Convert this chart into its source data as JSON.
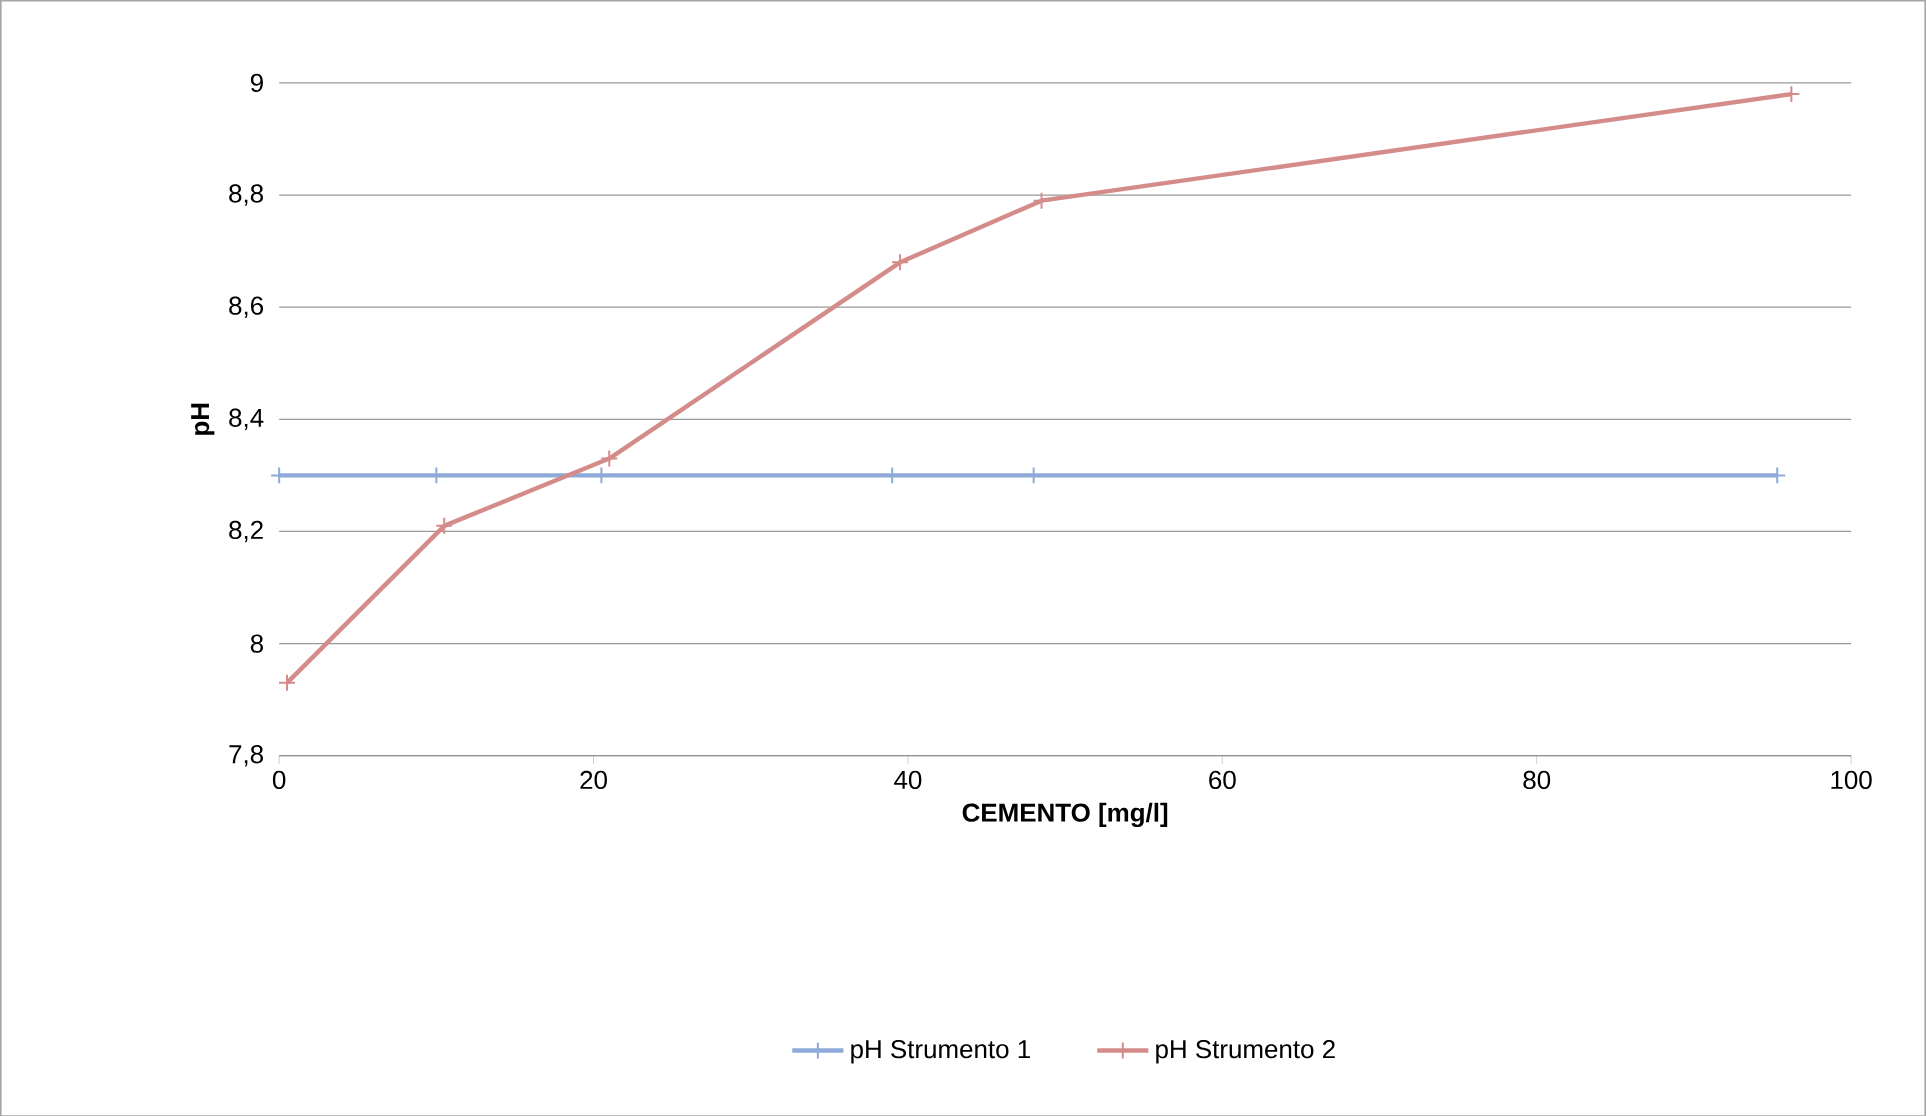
{
  "chart_data": {
    "type": "line",
    "xlabel": "CEMENTO [mg/l]",
    "ylabel": "pH",
    "xlim": [
      0,
      100
    ],
    "xticks": [
      0,
      20,
      40,
      60,
      80,
      100
    ],
    "ylim": [
      7.8,
      9
    ],
    "yticks": [
      {
        "value": 7.8,
        "label": "7,8"
      },
      {
        "value": 8,
        "label": "8"
      },
      {
        "value": 8.2,
        "label": "8,2"
      },
      {
        "value": 8.4,
        "label": "8,4"
      },
      {
        "value": 8.6,
        "label": "8,6"
      },
      {
        "value": 8.8,
        "label": "8,8"
      },
      {
        "value": 9,
        "label": "9"
      }
    ],
    "grid": "y",
    "legend": "bottom",
    "marker": "cross",
    "line_style": "solid",
    "series": [
      {
        "name": "pH Strumento 1",
        "color": "#8eaad8",
        "x": [
          0,
          10,
          20.5,
          39,
          48,
          95.3
        ],
        "values": [
          8.3,
          8.3,
          8.3,
          8.3,
          8.3,
          8.3
        ]
      },
      {
        "name": "pH Strumento 2",
        "color": "#d48c8a",
        "x": [
          0.5,
          10.5,
          21,
          39.5,
          48.5,
          96.2
        ],
        "values": [
          7.93,
          8.21,
          8.33,
          8.68,
          8.79,
          8.98
        ]
      }
    ]
  }
}
